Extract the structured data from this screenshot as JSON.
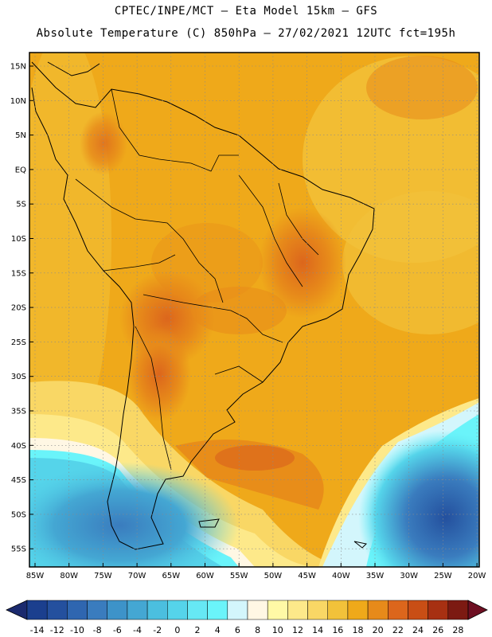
{
  "header": {
    "line1": "CPTEC/INPE/MCT –   Eta Model 15km – GFS",
    "line2": "Absolute Temperature (C) 850hPa – 27/02/2021 12UTC fct=195h"
  },
  "map": {
    "lat_labels": [
      "15N",
      "10N",
      "5N",
      "EQ",
      "5S",
      "10S",
      "15S",
      "20S",
      "25S",
      "30S",
      "35S",
      "40S",
      "45S",
      "50S",
      "55S"
    ],
    "lon_labels": [
      "85W",
      "80W",
      "75W",
      "70W",
      "65W",
      "60W",
      "55W",
      "50W",
      "45W",
      "40W",
      "35W",
      "30W",
      "25W",
      "20W"
    ],
    "grid": "dotted"
  },
  "colorbar": {
    "ticks": [
      "-14",
      "-12",
      "-10",
      "-8",
      "-6",
      "-4",
      "-2",
      "0",
      "2",
      "4",
      "6",
      "8",
      "10",
      "12",
      "14",
      "16",
      "18",
      "20",
      "22",
      "24",
      "26",
      "28"
    ],
    "colors": [
      "#1b3f8e",
      "#24509e",
      "#2f66b0",
      "#3a7cbe",
      "#3d93c9",
      "#44a7d3",
      "#4bbfdf",
      "#55d4ea",
      "#66e8f4",
      "#6af4fa",
      "#d3f6fc",
      "#fff7e4",
      "#fff9a6",
      "#fde98a",
      "#f9d765",
      "#f2c23a",
      "#efa91a",
      "#e78a1a",
      "#dc661c",
      "#c94e15",
      "#a73012",
      "#7c1a12"
    ],
    "under_color": "#1b2a6e",
    "over_color": "#6e0f22"
  }
}
